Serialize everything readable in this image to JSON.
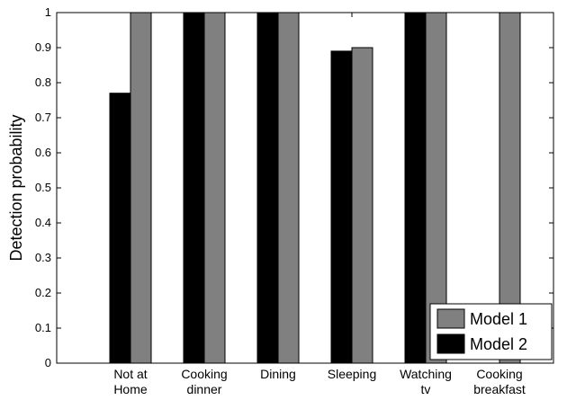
{
  "chart_data": {
    "type": "bar",
    "categories": [
      [
        "Not at",
        "Home"
      ],
      [
        "Cooking",
        "dinner"
      ],
      [
        "Dining"
      ],
      [
        "Sleeping"
      ],
      [
        "Watching",
        "tv"
      ],
      [
        "Cooking",
        "breakfast"
      ]
    ],
    "series": [
      {
        "name": "Model 2",
        "color": "#000000",
        "values": [
          0.77,
          1.0,
          1.0,
          0.89,
          1.0,
          0.0
        ]
      },
      {
        "name": "Model 1",
        "color": "#808080",
        "values": [
          1.0,
          1.0,
          1.0,
          0.9,
          1.0,
          1.0
        ]
      }
    ],
    "legend_order": [
      "Model 1",
      "Model 2"
    ],
    "ylabel": "Detection probability",
    "xlabel": "",
    "ylim": [
      0,
      1
    ],
    "yticks": [
      "0",
      "0.1",
      "0.2",
      "0.3",
      "0.4",
      "0.5",
      "0.6",
      "0.7",
      "0.8",
      "0.9",
      "1"
    ],
    "grid": false,
    "legend_position": "bottom-right"
  }
}
